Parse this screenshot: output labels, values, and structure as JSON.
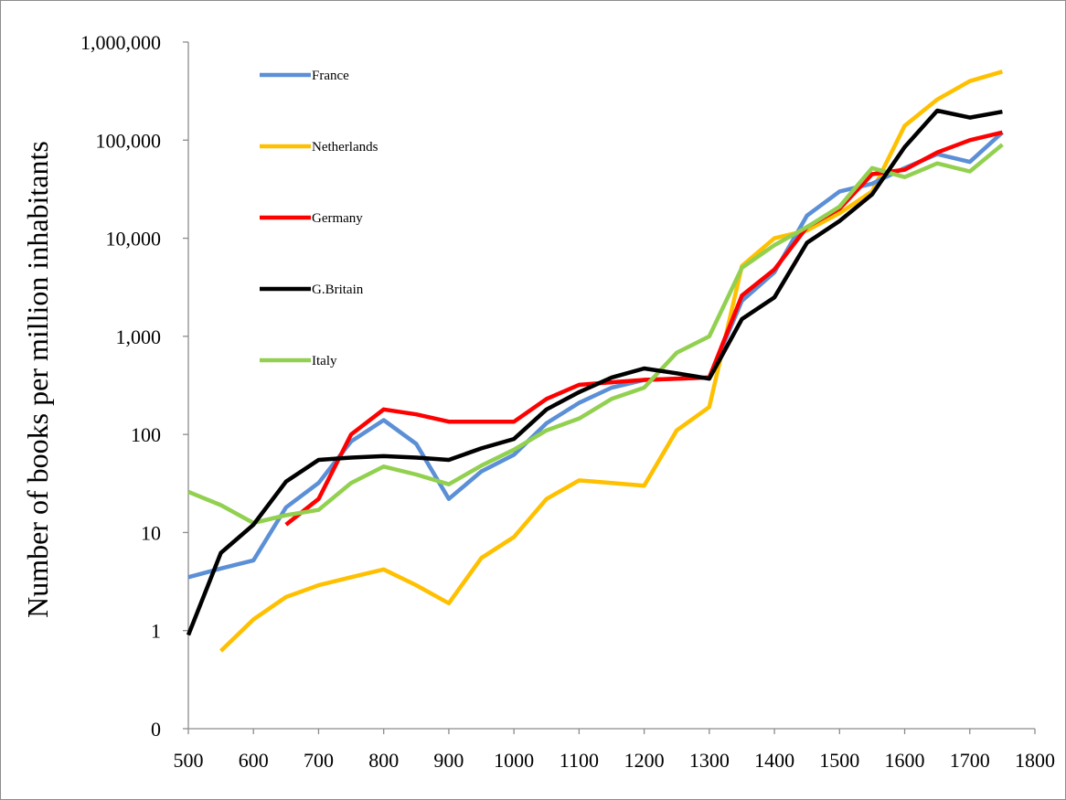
{
  "chart_data": {
    "type": "line",
    "title": "",
    "xlabel": "",
    "ylabel": "Number of books per million  inhabitants",
    "x_scale": "linear",
    "y_scale": "log",
    "xlim": [
      500,
      1800
    ],
    "ylim": [
      0.1,
      1000000
    ],
    "x_ticks": [
      500,
      600,
      700,
      800,
      900,
      1000,
      1100,
      1200,
      1300,
      1400,
      1500,
      1600,
      1700,
      1800
    ],
    "x_tick_labels": [
      "500",
      "600",
      "700",
      "800",
      "900",
      "1000",
      "1100",
      "1200",
      "1300",
      "1400",
      "1500",
      "1600",
      "1700",
      "1800"
    ],
    "y_ticks": [
      0.1,
      1,
      10,
      100,
      1000,
      10000,
      100000,
      1000000
    ],
    "y_tick_labels": [
      "0",
      "1",
      "10",
      "100",
      "1,000",
      "10,000",
      "100,000",
      "1,000,000"
    ],
    "grid": false,
    "legend_position": "top-left",
    "x": [
      500,
      550,
      600,
      650,
      700,
      750,
      800,
      850,
      900,
      950,
      1000,
      1050,
      1100,
      1150,
      1200,
      1250,
      1300,
      1350,
      1400,
      1450,
      1500,
      1550,
      1600,
      1650,
      1700,
      1750
    ],
    "series": [
      {
        "name": "France",
        "color": "#5b8fd6",
        "values": [
          3.5,
          4.3,
          5.2,
          18,
          32,
          85,
          140,
          80,
          22,
          42,
          62,
          130,
          210,
          300,
          360,
          370,
          380,
          2300,
          4500,
          17000,
          30000,
          36000,
          52000,
          72000,
          60000,
          120000
        ]
      },
      {
        "name": "Netherlands",
        "color": "#ffc000",
        "values": [
          null,
          0.62,
          1.3,
          2.2,
          2.9,
          3.5,
          4.2,
          2.9,
          1.9,
          5.5,
          9,
          22,
          34,
          32,
          30,
          110,
          190,
          5200,
          10000,
          12000,
          18000,
          30000,
          140000,
          260000,
          400000,
          500000
        ]
      },
      {
        "name": "Germany",
        "color": "#ff0000",
        "values": [
          null,
          null,
          null,
          12,
          22,
          100,
          180,
          160,
          135,
          135,
          135,
          230,
          320,
          340,
          360,
          370,
          380,
          2600,
          4800,
          13000,
          20000,
          45000,
          50000,
          75000,
          100000,
          120000
        ]
      },
      {
        "name": "G.Britain",
        "color": "#000000",
        "values": [
          0.9,
          6.2,
          12,
          33,
          55,
          58,
          60,
          58,
          55,
          72,
          90,
          180,
          270,
          380,
          470,
          420,
          370,
          1500,
          2500,
          9000,
          15000,
          28000,
          85000,
          200000,
          170000,
          195000
        ]
      },
      {
        "name": "Italy",
        "color": "#92d050",
        "values": [
          26,
          19,
          12.5,
          15,
          17,
          32,
          47,
          39,
          31,
          48,
          70,
          110,
          145,
          230,
          300,
          680,
          1000,
          5000,
          8500,
          13000,
          21000,
          52000,
          42000,
          58000,
          48000,
          90000
        ]
      }
    ]
  }
}
